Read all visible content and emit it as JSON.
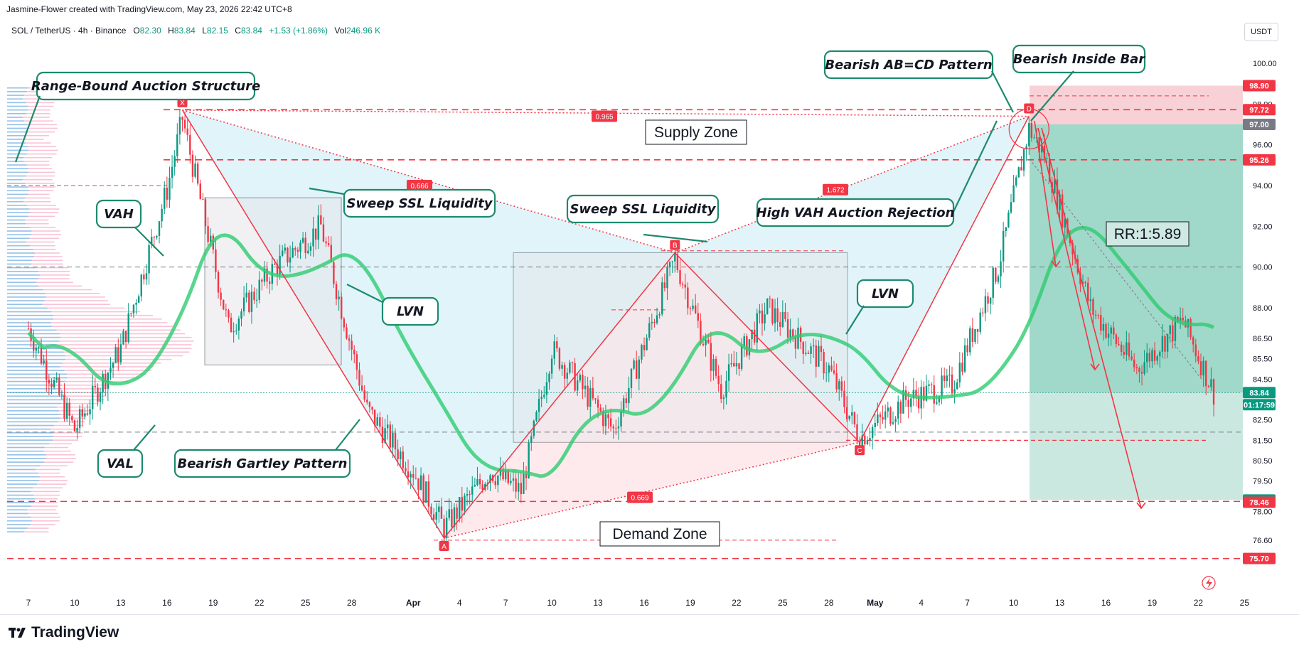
{
  "header": {
    "created_line": "Jasmine-Flower created with TradingView.com, May 23, 2026 22:42 UTC+8",
    "symbol_line": "SOL / TetherUS · 4h · Binance",
    "ohlc": {
      "O": "82.30",
      "H": "83.84",
      "L": "82.15",
      "C": "83.84",
      "change": "+1.53 (+1.86%)",
      "vol_label": "Vol",
      "vol": "246.96 K"
    },
    "currency": "USDT"
  },
  "footer": {
    "brand": "TradingView"
  },
  "colors": {
    "bull": "#089981",
    "bear": "#f23645",
    "supply_fill": "#f7c9cf",
    "profit_fill": "#b8e0d6",
    "pattern_fill": "#d6f0f8",
    "label_border": "#1d8a6e",
    "price_badge": "#f23645"
  },
  "chart_data": {
    "type": "candlestick",
    "symbol": "SOL / TetherUS",
    "timeframe": "4h",
    "x_ticks": [
      "7",
      "10",
      "13",
      "16",
      "19",
      "22",
      "25",
      "28",
      "Apr",
      "4",
      "7",
      "10",
      "13",
      "16",
      "19",
      "22",
      "25",
      "28",
      "May",
      "4",
      "7",
      "10",
      "13",
      "16",
      "19",
      "22",
      "25"
    ],
    "y_ticks": [
      "100.00",
      "98.00",
      "96.00",
      "94.00",
      "92.00",
      "90.00",
      "88.00",
      "86.50",
      "85.50",
      "84.50",
      "82.50",
      "81.50",
      "80.50",
      "79.50",
      "78.00",
      "76.60"
    ],
    "y_range": [
      75.2,
      100.8
    ],
    "price_badges": [
      {
        "text": "98.90",
        "value": 98.9,
        "color": "#f23645"
      },
      {
        "text": "97.72",
        "value": 97.72,
        "color": "#f23645"
      },
      {
        "text": "97.00",
        "value": 97.0,
        "color": "#787b86"
      },
      {
        "text": "95.26",
        "value": 95.26,
        "color": "#f23645"
      },
      {
        "text": "83.84",
        "value": 83.84,
        "color": "#089981"
      },
      {
        "text": "01:17:59",
        "value": 83.2,
        "color": "#089981"
      },
      {
        "text": "78.57",
        "value": 78.57,
        "color": "#089981"
      },
      {
        "text": "78.46",
        "value": 78.46,
        "color": "#f23645"
      },
      {
        "text": "75.70",
        "value": 75.7,
        "color": "#f23645"
      }
    ],
    "pattern_points": [
      {
        "label": "X",
        "date": "Mar 17",
        "price": 97.7
      },
      {
        "label": "A",
        "date": "Apr 3",
        "price": 76.7
      },
      {
        "label": "B",
        "date": "Apr 18",
        "price": 90.7
      },
      {
        "label": "C",
        "date": "Apr 30",
        "price": 81.4
      },
      {
        "label": "D",
        "date": "May 11",
        "price": 97.4
      }
    ],
    "fib_ratios": [
      "0.965",
      "0.666",
      "0.669",
      "1.672"
    ],
    "annotations": [
      "Range-Bound Auction Structure",
      "Bearish AB=CD Pattern",
      "Bearish Inside Bar",
      "Supply Zone",
      "Sweep SSL Liquidity",
      "Sweep SSL Liquidity",
      "High VAH Auction Rejection",
      "VAH",
      "VAL",
      "LVN",
      "LVN",
      "Bearish Gartley Pattern",
      "RR:1:5.89",
      "Demand Zone"
    ],
    "key_levels": [
      97.72,
      95.26,
      94.0,
      90.0,
      83.84,
      81.9,
      81.5,
      78.5,
      75.7
    ],
    "last_price": 83.84
  }
}
